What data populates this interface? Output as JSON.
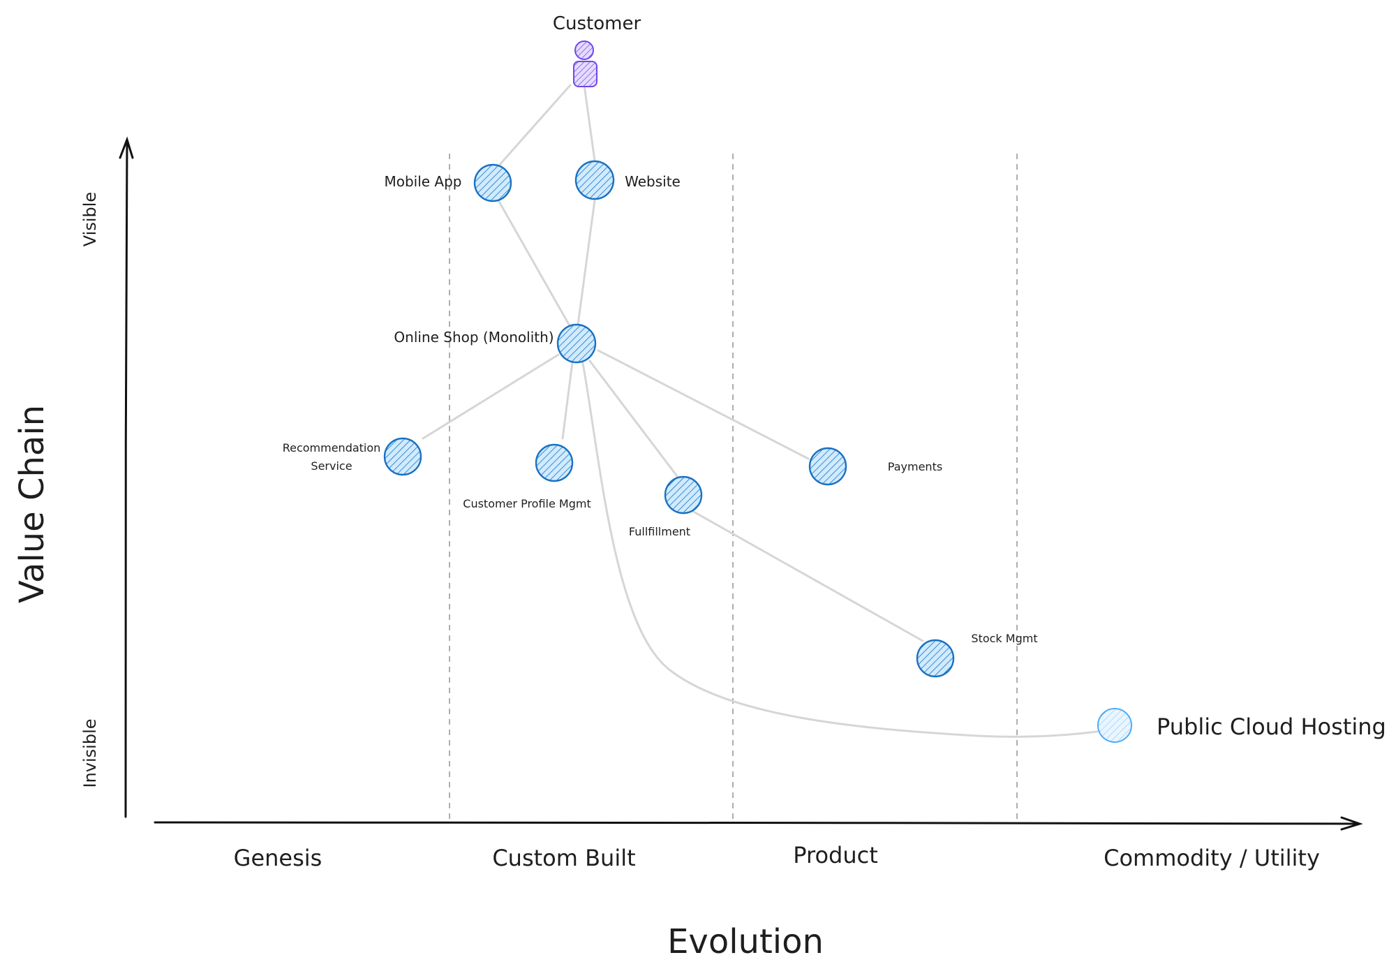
{
  "diagram": {
    "type": "wardley-map",
    "actor": {
      "label": "Customer",
      "icon": "person-icon"
    },
    "axes": {
      "y_title": "Value Chain",
      "y_top": "Visible",
      "y_bottom": "Invisible",
      "x_title": "Evolution",
      "stages": [
        "Genesis",
        "Custom Built",
        "Product",
        "Commodity / Utility"
      ]
    },
    "components": {
      "mobile_app": "Mobile App",
      "website": "Website",
      "online_shop": "Online Shop (Monolith)",
      "recommendation_line1": "Recommendation",
      "recommendation_line2": "Service",
      "customer_profile": "Customer Profile Mgmt",
      "fulfillment": "Fullfillment",
      "payments": "Payments",
      "stock": "Stock Mgmt",
      "cloud": "Public Cloud Hosting"
    },
    "links": [
      [
        "Customer",
        "Mobile App"
      ],
      [
        "Customer",
        "Website"
      ],
      [
        "Mobile App",
        "Online Shop (Monolith)"
      ],
      [
        "Website",
        "Online Shop (Monolith)"
      ],
      [
        "Online Shop (Monolith)",
        "Recommendation Service"
      ],
      [
        "Online Shop (Monolith)",
        "Customer Profile Mgmt"
      ],
      [
        "Online Shop (Monolith)",
        "Fullfillment"
      ],
      [
        "Online Shop (Monolith)",
        "Payments"
      ],
      [
        "Online Shop (Monolith)",
        "Public Cloud Hosting"
      ],
      [
        "Fullfillment",
        "Stock Mgmt"
      ]
    ],
    "colors": {
      "component_stroke": "#1971c2",
      "component_light_stroke": "#4dabf7",
      "actor": "#7048e8",
      "link": "#d6d6d6",
      "divider": "#9a9a9a"
    }
  }
}
